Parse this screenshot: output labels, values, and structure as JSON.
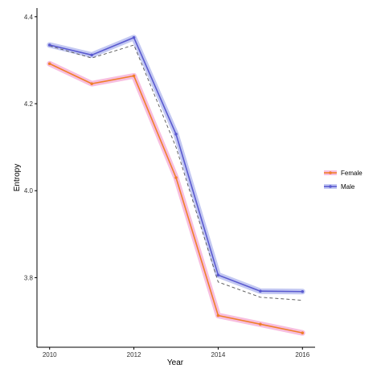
{
  "chart_data": {
    "type": "line",
    "xlabel": "Year",
    "ylabel": "Entropy",
    "x": [
      2010,
      2011,
      2012,
      2013,
      2014,
      2015,
      2016
    ],
    "x_ticks": [
      2010,
      2012,
      2014,
      2016
    ],
    "y_ticks": [
      3.8,
      4.0,
      4.2,
      4.4
    ],
    "xlim": [
      2009.7,
      2016.3
    ],
    "ylim": [
      3.64,
      4.42
    ],
    "grid": false,
    "legend_position": "right",
    "series": [
      {
        "name": "Female",
        "color": "#f07f2a",
        "band_color": "#f4a3d2",
        "values": [
          4.292,
          4.246,
          4.264,
          4.03,
          3.713,
          3.693,
          3.673
        ]
      },
      {
        "name": "Male",
        "color": "#5a5ad0",
        "band_color": "#a9b0ec",
        "values": [
          4.335,
          4.312,
          4.352,
          4.13,
          3.806,
          3.769,
          3.768
        ]
      }
    ],
    "reference_line": {
      "style": "dashed",
      "color": "#555555",
      "values": [
        4.333,
        4.305,
        4.335,
        4.1,
        3.79,
        3.755,
        3.748
      ]
    }
  }
}
